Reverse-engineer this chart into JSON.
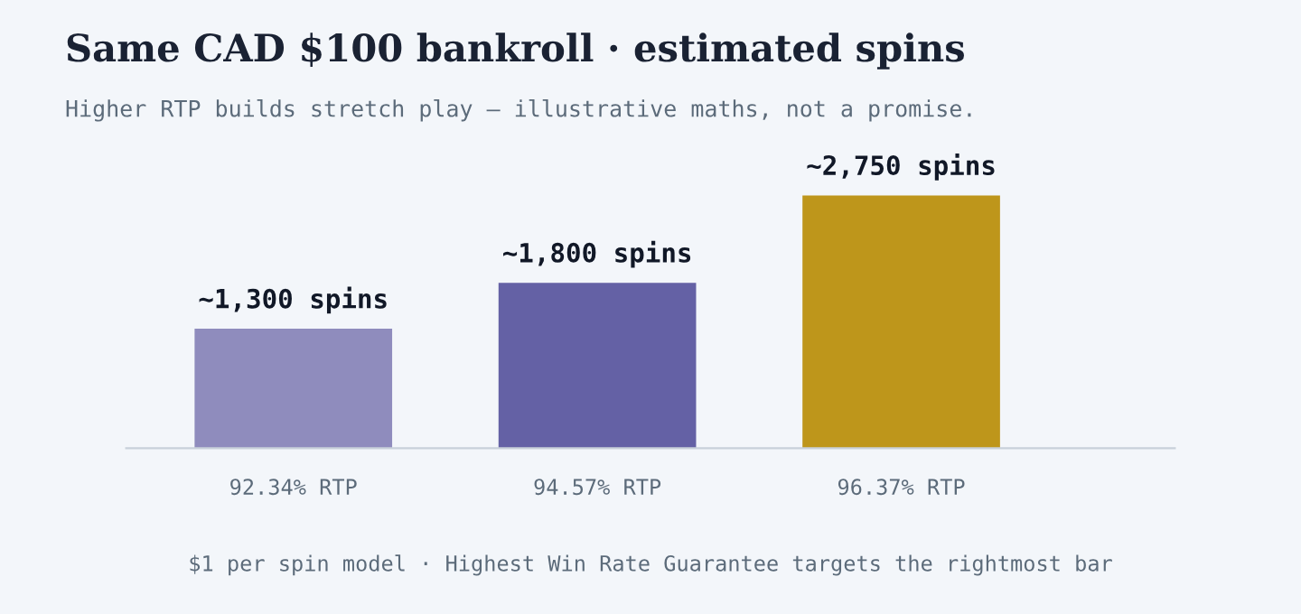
{
  "chart_data": {
    "type": "bar",
    "title": "Same CAD $100 bankroll · estimated spins",
    "subtitle": "Higher RTP builds stretch play — illustrative maths, not a promise.",
    "categories": [
      "92.34% RTP",
      "94.57% RTP",
      "96.37% RTP"
    ],
    "values": [
      1300,
      1800,
      2750
    ],
    "colors": [
      "#8f8cbd",
      "#6461a5",
      "#be961b"
    ],
    "value_labels": [
      "~1,300 spins",
      "~1,800 spins",
      "~2,750 spins"
    ],
    "annotations": [
      "$1 per spin model · Highest Win Rate Guarantee targets the rightmost bar"
    ],
    "grid": false,
    "legend": false
  }
}
